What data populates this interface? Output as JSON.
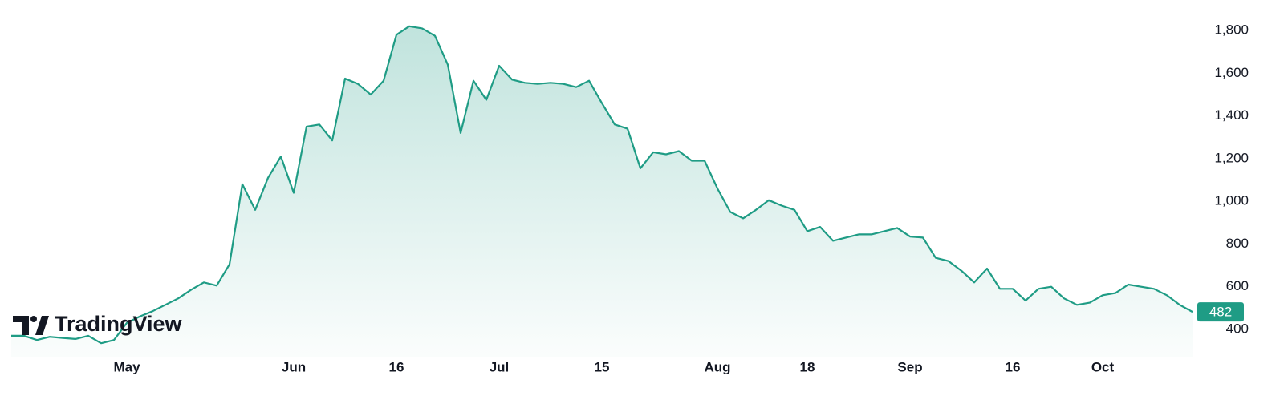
{
  "chart_data": {
    "type": "area",
    "brand": "TradingView",
    "categories": [
      null,
      null,
      null,
      null,
      null,
      null,
      null,
      null,
      null,
      "May",
      null,
      null,
      null,
      null,
      null,
      null,
      null,
      null,
      null,
      null,
      null,
      null,
      "Jun",
      null,
      null,
      null,
      null,
      null,
      null,
      null,
      "16",
      null,
      null,
      null,
      null,
      null,
      null,
      null,
      "Jul",
      null,
      null,
      null,
      null,
      null,
      null,
      null,
      "15",
      null,
      null,
      null,
      null,
      null,
      null,
      null,
      null,
      "Aug",
      null,
      null,
      null,
      null,
      null,
      null,
      "18",
      null,
      null,
      null,
      null,
      null,
      null,
      null,
      "Sep",
      null,
      null,
      null,
      null,
      null,
      null,
      null,
      "16",
      null,
      null,
      null,
      null,
      null,
      null,
      "Oct",
      null,
      null,
      null,
      null,
      null,
      null,
      null
    ],
    "series": [
      {
        "color": "#1f9c85",
        "values": [
          370,
          370,
          350,
          365,
          360,
          355,
          370,
          335,
          350,
          430,
          460,
          485,
          515,
          545,
          585,
          620,
          605,
          705,
          1080,
          960,
          1110,
          1210,
          1040,
          1350,
          1360,
          1285,
          1575,
          1550,
          1500,
          1565,
          1780,
          1820,
          1810,
          1775,
          1640,
          1320,
          1565,
          1475,
          1635,
          1570,
          1555,
          1550,
          1555,
          1550,
          1535,
          1565,
          1460,
          1360,
          1340,
          1155,
          1230,
          1220,
          1235,
          1190,
          1190,
          1060,
          950,
          920,
          960,
          1005,
          980,
          960,
          860,
          880,
          815,
          830,
          845,
          845,
          860,
          875,
          835,
          830,
          735,
          720,
          675,
          620,
          685,
          590,
          590,
          535,
          590,
          600,
          545,
          515,
          525,
          560,
          570,
          610,
          600,
          590,
          560,
          515,
          482
        ]
      }
    ],
    "ylim": [
      272,
      1943
    ],
    "yticks": [
      400,
      600,
      800,
      {
        "value": 1000,
        "label": "1,000"
      },
      {
        "value": 1200,
        "label": "1,200"
      },
      {
        "value": 1400,
        "label": "1,400"
      },
      {
        "value": 1600,
        "label": "1,600"
      },
      {
        "value": 1800,
        "label": "1,800"
      }
    ],
    "grid": false
  }
}
